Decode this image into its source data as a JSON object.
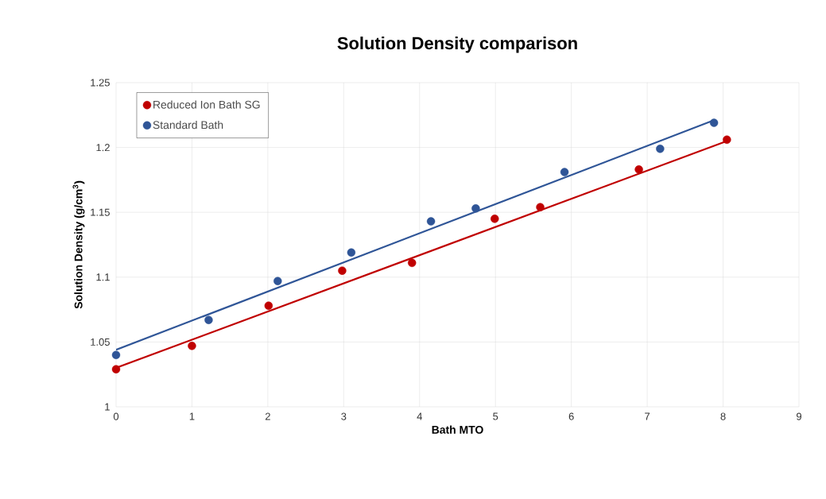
{
  "chart_data": {
    "type": "scatter",
    "title": "Solution Density comparison",
    "xlabel": "Bath MTO",
    "ylabel": "Solution Density (g/cm$^{3}$)",
    "xlim": [
      0,
      9
    ],
    "xticks": [
      0,
      1,
      2,
      3,
      4,
      5,
      6,
      7,
      8,
      9
    ],
    "ylim": [
      1,
      1.25
    ],
    "yticks": [
      1,
      1.05,
      1.1,
      1.15,
      1.2,
      1.25
    ],
    "grid": true,
    "legend": "top left",
    "series": [
      {
        "name": "Reduced Ion Bath SG",
        "marker": "circle",
        "color": "#c00000",
        "x": [
          0,
          1.0,
          2.01,
          2.98,
          3.9,
          4.99,
          5.59,
          6.89,
          8.05
        ],
        "values": [
          1.029,
          1.047,
          1.078,
          1.105,
          1.111,
          1.145,
          1.154,
          1.183,
          1.206
        ]
      },
      {
        "name": "Standard Bath",
        "marker": "circle",
        "color": "#2f5597",
        "x": [
          0,
          1.22,
          2.13,
          3.1,
          4.15,
          4.74,
          5.91,
          7.17,
          7.88
        ],
        "values": [
          1.04,
          1.067,
          1.097,
          1.119,
          1.143,
          1.153,
          1.181,
          1.199,
          1.219
        ]
      },
      {
        "type": "line",
        "marker": "none",
        "color": "#c00000",
        "x": [
          0,
          8.05
        ],
        "values": [
          1.03,
          1.205
        ]
      },
      {
        "type": "line",
        "marker": "none",
        "color": "#2f5597",
        "x": [
          0,
          7.88
        ],
        "values": [
          1.044,
          1.221
        ]
      }
    ]
  }
}
